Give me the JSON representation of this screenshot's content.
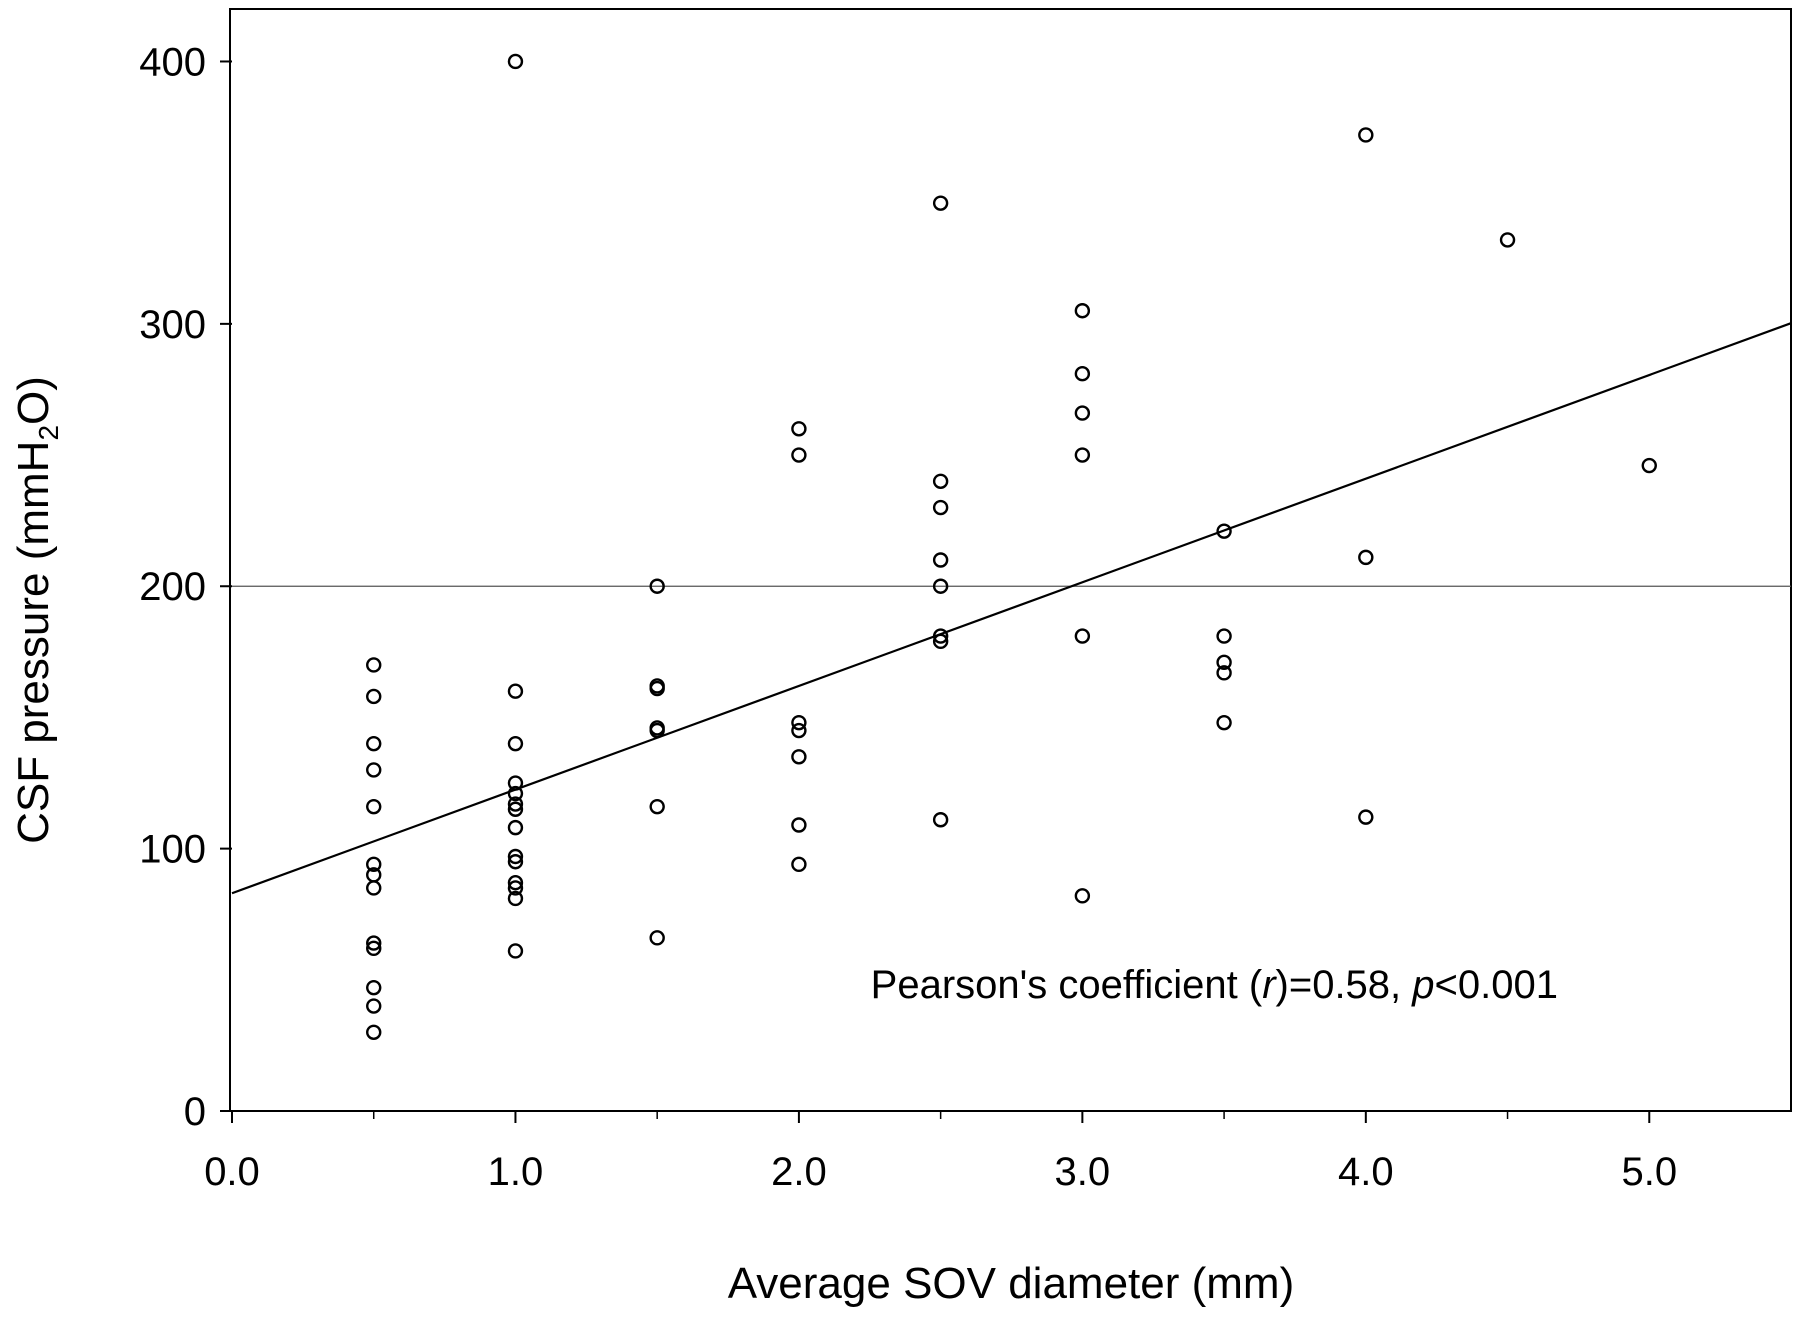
{
  "chart_data": {
    "type": "scatter",
    "title": "",
    "xlabel": "Average SOV diameter (mm)",
    "ylabel_parts": [
      "CSF pressure (mmH",
      "2",
      "O)"
    ],
    "xlim": [
      0,
      5.5
    ],
    "ylim": [
      0,
      420
    ],
    "x_ticks": [
      0,
      1,
      2,
      3,
      4,
      5
    ],
    "x_tick_labels": [
      "0.0",
      "1.0",
      "2.0",
      "3.0",
      "4.0",
      "5.0"
    ],
    "y_ticks": [
      0,
      100,
      200,
      300,
      400
    ],
    "y_tick_labels": [
      "0",
      "100",
      "200",
      "300",
      "400"
    ],
    "reference_line_y": 200,
    "regression_line": {
      "intercept": 83,
      "slope": 39.5
    },
    "annotation_parts": [
      "Pearson's coefficient (",
      "r",
      ")=0.58, ",
      "p",
      "<0.001"
    ],
    "grid": false,
    "points": [
      {
        "x": 0.5,
        "y": 170
      },
      {
        "x": 0.5,
        "y": 158
      },
      {
        "x": 0.5,
        "y": 140
      },
      {
        "x": 0.5,
        "y": 130
      },
      {
        "x": 0.5,
        "y": 116
      },
      {
        "x": 0.5,
        "y": 94
      },
      {
        "x": 0.5,
        "y": 90
      },
      {
        "x": 0.5,
        "y": 85
      },
      {
        "x": 0.5,
        "y": 64
      },
      {
        "x": 0.5,
        "y": 62
      },
      {
        "x": 0.5,
        "y": 47
      },
      {
        "x": 0.5,
        "y": 40
      },
      {
        "x": 0.5,
        "y": 30
      },
      {
        "x": 1.0,
        "y": 400
      },
      {
        "x": 1.0,
        "y": 160
      },
      {
        "x": 1.0,
        "y": 140
      },
      {
        "x": 1.0,
        "y": 125
      },
      {
        "x": 1.0,
        "y": 121
      },
      {
        "x": 1.0,
        "y": 117
      },
      {
        "x": 1.0,
        "y": 115
      },
      {
        "x": 1.0,
        "y": 108
      },
      {
        "x": 1.0,
        "y": 97
      },
      {
        "x": 1.0,
        "y": 95
      },
      {
        "x": 1.0,
        "y": 87
      },
      {
        "x": 1.0,
        "y": 85
      },
      {
        "x": 1.0,
        "y": 81
      },
      {
        "x": 1.0,
        "y": 61
      },
      {
        "x": 1.5,
        "y": 200
      },
      {
        "x": 1.5,
        "y": 162
      },
      {
        "x": 1.5,
        "y": 161
      },
      {
        "x": 1.5,
        "y": 146
      },
      {
        "x": 1.5,
        "y": 145
      },
      {
        "x": 1.5,
        "y": 116
      },
      {
        "x": 1.5,
        "y": 66
      },
      {
        "x": 2.0,
        "y": 260
      },
      {
        "x": 2.0,
        "y": 250
      },
      {
        "x": 2.0,
        "y": 148
      },
      {
        "x": 2.0,
        "y": 145
      },
      {
        "x": 2.0,
        "y": 135
      },
      {
        "x": 2.0,
        "y": 109
      },
      {
        "x": 2.0,
        "y": 94
      },
      {
        "x": 2.5,
        "y": 346
      },
      {
        "x": 2.5,
        "y": 240
      },
      {
        "x": 2.5,
        "y": 230
      },
      {
        "x": 2.5,
        "y": 210
      },
      {
        "x": 2.5,
        "y": 200
      },
      {
        "x": 2.5,
        "y": 181
      },
      {
        "x": 2.5,
        "y": 179
      },
      {
        "x": 2.5,
        "y": 111
      },
      {
        "x": 3.0,
        "y": 305
      },
      {
        "x": 3.0,
        "y": 281
      },
      {
        "x": 3.0,
        "y": 266
      },
      {
        "x": 3.0,
        "y": 250
      },
      {
        "x": 3.0,
        "y": 181
      },
      {
        "x": 3.0,
        "y": 82
      },
      {
        "x": 3.5,
        "y": 221
      },
      {
        "x": 3.5,
        "y": 181
      },
      {
        "x": 3.5,
        "y": 171
      },
      {
        "x": 3.5,
        "y": 167
      },
      {
        "x": 3.5,
        "y": 148
      },
      {
        "x": 4.0,
        "y": 372
      },
      {
        "x": 4.0,
        "y": 211
      },
      {
        "x": 4.0,
        "y": 112
      },
      {
        "x": 4.5,
        "y": 332
      },
      {
        "x": 5.0,
        "y": 246
      }
    ]
  }
}
